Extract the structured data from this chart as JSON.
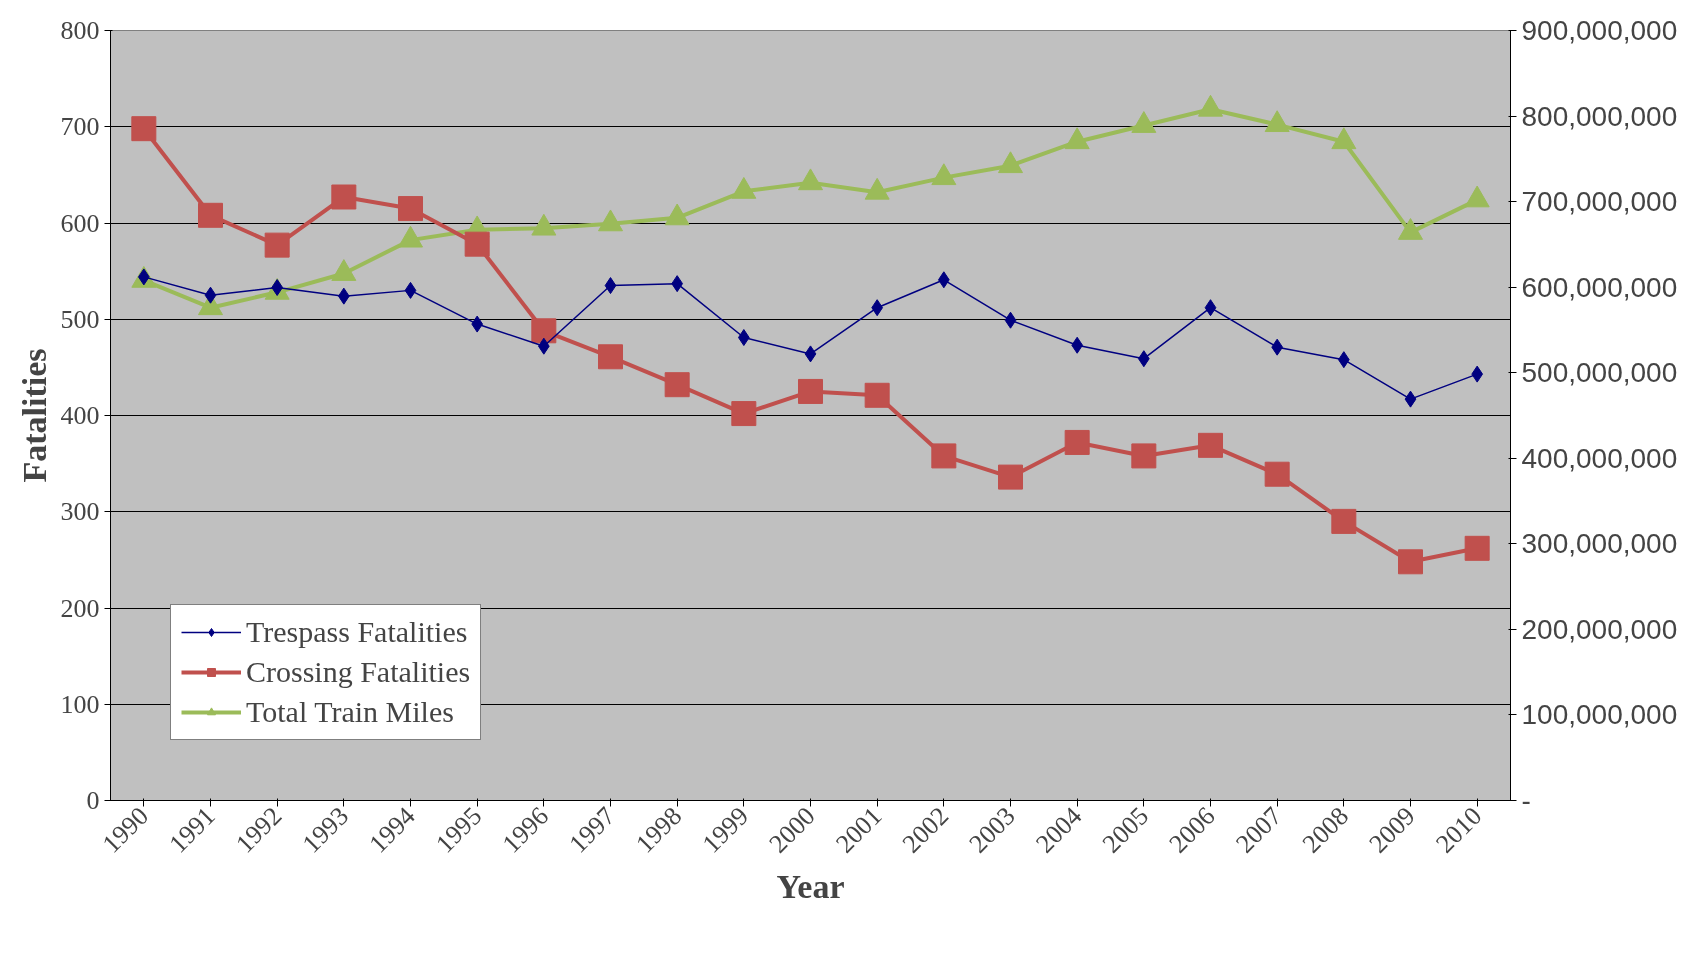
{
  "chart_data": {
    "type": "line",
    "xlabel": "Year",
    "ylabel": "Fatalities",
    "categories": [
      "1990",
      "1991",
      "1992",
      "1993",
      "1994",
      "1995",
      "1996",
      "1997",
      "1998",
      "1999",
      "2000",
      "2001",
      "2002",
      "2003",
      "2004",
      "2005",
      "2006",
      "2007",
      "2008",
      "2009",
      "2010"
    ],
    "series": [
      {
        "name": "Trespass Fatalities",
        "color": "#000080",
        "marker": "diamond",
        "values": [
          544,
          525,
          533,
          524,
          530,
          495,
          472,
          535,
          537,
          481,
          464,
          512,
          541,
          499,
          473,
          459,
          512,
          471,
          458,
          417,
          443
        ]
      },
      {
        "name": "Crossing Fatalities",
        "color": "#c0504d",
        "marker": "square",
        "values": [
          698,
          608,
          577,
          627,
          615,
          578,
          488,
          461,
          432,
          402,
          425,
          421,
          358,
          336,
          372,
          358,
          369,
          339,
          290,
          248,
          262
        ]
      },
      {
        "name": "Total Train Miles",
        "color": "#9bbb59",
        "marker": "triangle",
        "axis": "y2",
        "values": [
          608000000,
          576000000,
          594000000,
          616000000,
          655000000,
          667000000,
          669000000,
          674000000,
          681000000,
          712000000,
          722000000,
          711000000,
          728000000,
          742000000,
          770000000,
          789000000,
          808000000,
          790000000,
          770000000,
          664000000,
          702000000
        ]
      }
    ],
    "ylim": [
      0,
      800
    ],
    "yticks": [
      0,
      100,
      200,
      300,
      400,
      500,
      600,
      700,
      800
    ],
    "y2lim": [
      0,
      900000000
    ],
    "y2ticks": [
      {
        "value": 0,
        "label": "-"
      },
      {
        "value": 100000000,
        "label": "100,000,000"
      },
      {
        "value": 200000000,
        "label": "200,000,000"
      },
      {
        "value": 300000000,
        "label": "300,000,000"
      },
      {
        "value": 400000000,
        "label": "400,000,000"
      },
      {
        "value": 500000000,
        "label": "500,000,000"
      },
      {
        "value": 600000000,
        "label": "600,000,000"
      },
      {
        "value": 700000000,
        "label": "700,000,000"
      },
      {
        "value": 800000000,
        "label": "800,000,000"
      },
      {
        "value": 900000000,
        "label": "900,000,000"
      }
    ],
    "grid": "y",
    "legend": "bottom left",
    "line_style": "solid"
  }
}
